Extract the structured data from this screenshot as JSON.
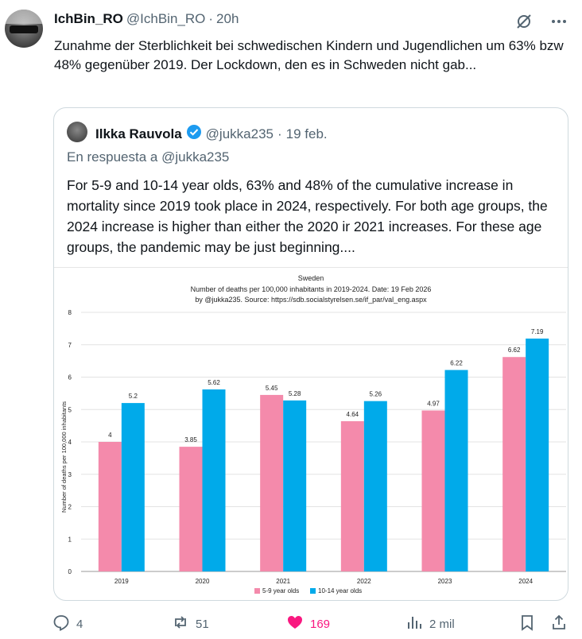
{
  "tweet": {
    "display_name": "IchBin_RO",
    "handle": "@IchBin_RO",
    "separator": "·",
    "time": "20h",
    "text": "Zunahme der Sterblichkeit bei schwedischen Kindern und Jugendlichen um 63% bzw 48% gegenüber 2019. Der Lockdown, den es in Schweden nicht gab..."
  },
  "quote": {
    "display_name": "Ilkka Rauvola",
    "handle": "@jukka235",
    "separator": "·",
    "date": "19 feb.",
    "reply_to": "En respuesta a @jukka235",
    "text": "For 5-9 and 10-14 year olds, 63% and 48% of the cumulative increase in mortality since 2019 took place in 2024, respectively. For both age groups, the 2024 increase is higher than either the 2020 ir 2021 increases. For these age groups, the pandemic may be just beginning...."
  },
  "actions": {
    "replies": "4",
    "reposts": "51",
    "likes": "169",
    "views": "2 mil"
  },
  "colors": {
    "series_a": "#f48aab",
    "series_b": "#00aaea",
    "like": "#f91880",
    "muted": "#536471",
    "verified": "#1d9bf0"
  },
  "chart_data": {
    "type": "bar",
    "title": "Sweden",
    "subtitle": "Number of deaths per 100,000 inhabitants in 2019-2024. Date: 19 Feb 2026",
    "subtitle2": "by @jukka235. Source: https://sdb.socialstyrelsen.se/if_par/val_eng.aspx",
    "xlabel": "",
    "ylabel": "Number of deaths per 100,000 inhabitants",
    "ylim": [
      0,
      8
    ],
    "yticks": [
      "0",
      "1",
      "2",
      "3",
      "4",
      "5",
      "6",
      "7",
      "8"
    ],
    "categories": [
      "2019",
      "2020",
      "2021",
      "2022",
      "2023",
      "2024"
    ],
    "series": [
      {
        "name": "5-9 year olds",
        "values": [
          4,
          3.85,
          5.45,
          4.64,
          4.97,
          6.62
        ],
        "labels": [
          "4",
          "3.85",
          "5.45",
          "4.64",
          "4.97",
          "6.62"
        ]
      },
      {
        "name": "10-14 year olds",
        "values": [
          5.2,
          5.62,
          5.28,
          5.26,
          6.22,
          7.19
        ],
        "labels": [
          "5.2",
          "5.62",
          "5.28",
          "5.26",
          "6.22",
          "7.19"
        ]
      }
    ],
    "grid": true,
    "legend": "bottom"
  }
}
